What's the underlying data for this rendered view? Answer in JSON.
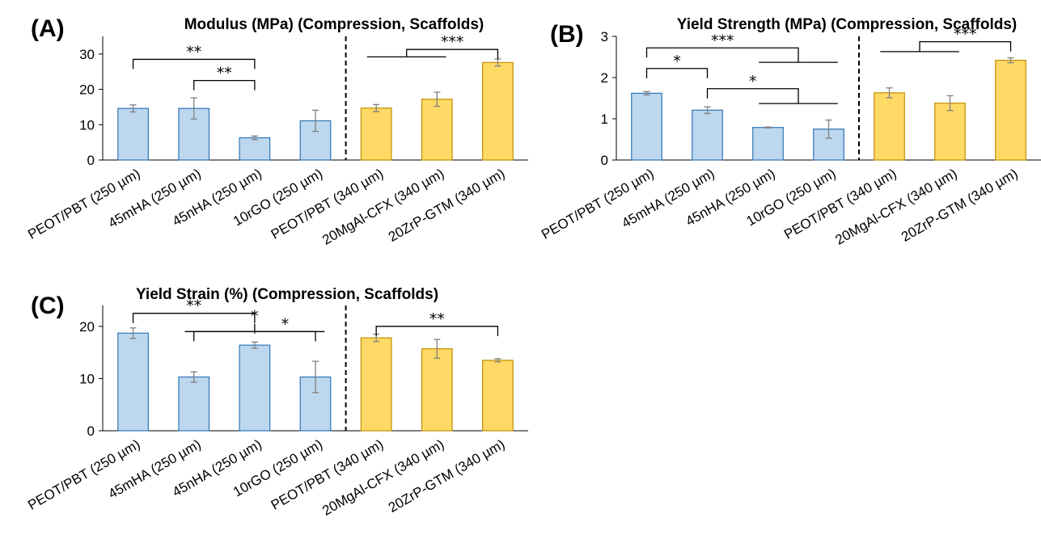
{
  "colors": {
    "blue_fill": "#bdd7ee",
    "blue_edge": "#2e75b6",
    "yellow_fill": "#ffd966",
    "yellow_edge": "#bf9000",
    "error_bar": "#7f7f7f",
    "axis": "#000000"
  },
  "chart_data": [
    {
      "panel": "(A)",
      "type": "bar",
      "title": "Modulus (MPa) (Compression, Scaffolds)",
      "categories": [
        "PEOT/PBT (250 µm)",
        "45mHA (250 µm)",
        "45nHA (250 µm)",
        "10rGO (250 µm)",
        "PEOT/PBT (340 µm)",
        "20MgAl-CFX (340 µm)",
        "20ZrP-GTM (340 µm)"
      ],
      "values": [
        14.6,
        14.6,
        6.3,
        11.1,
        14.7,
        17.2,
        27.6
      ],
      "errors": [
        1.0,
        3.0,
        0.5,
        3.0,
        1.0,
        2.0,
        1.0
      ],
      "fill": [
        "blue",
        "blue",
        "blue",
        "blue",
        "yellow",
        "yellow",
        "yellow"
      ],
      "ylim": [
        0,
        35
      ],
      "yticks": [
        0,
        10,
        20,
        30
      ],
      "grid": false,
      "divider_after_index": 3,
      "significance": [
        {
          "label": "**",
          "kind": "bracket",
          "from": 0,
          "to": 2,
          "y": 28.5
        },
        {
          "label": "**",
          "kind": "bracket",
          "from": 1,
          "to": 2,
          "y": 22.5
        },
        {
          "label": "***",
          "kind": "group",
          "group_from": 4,
          "group_to": 5,
          "group_y": 29.2,
          "target": 6,
          "y": 31.3
        }
      ]
    },
    {
      "panel": "(B)",
      "type": "bar",
      "title": "Yield Strength (MPa) (Compression, Scaffolds)",
      "categories": [
        "PEOT/PBT (250 µm)",
        "45mHA (250 µm)",
        "45nHA (250 µm)",
        "10rGO (250 µm)",
        "PEOT/PBT (340 µm)",
        "20MgAl-CFX (340 µm)",
        "20ZrP-GTM (340 µm)"
      ],
      "values": [
        1.62,
        1.21,
        0.79,
        0.75,
        1.63,
        1.38,
        2.42
      ],
      "errors": [
        0.04,
        0.08,
        0.01,
        0.22,
        0.12,
        0.18,
        0.06
      ],
      "fill": [
        "blue",
        "blue",
        "blue",
        "blue",
        "yellow",
        "yellow",
        "yellow"
      ],
      "ylim": [
        0,
        3
      ],
      "yticks": [
        0,
        1,
        2,
        3
      ],
      "grid": false,
      "divider_after_index": 3,
      "significance": [
        {
          "label": "*",
          "kind": "bracket",
          "from": 0,
          "to": 1,
          "y": 2.22
        },
        {
          "label": "***",
          "kind": "group",
          "group_from": 2,
          "group_to": 3,
          "group_y": 2.37,
          "target": 0,
          "y": 2.72
        },
        {
          "label": "*",
          "kind": "group",
          "group_from": 2,
          "group_to": 3,
          "group_y": 1.37,
          "target": 1,
          "y": 1.73
        },
        {
          "label": "***",
          "kind": "group",
          "group_from": 4,
          "group_to": 5,
          "group_y": 2.63,
          "target": 6,
          "y": 2.87
        }
      ]
    },
    {
      "panel": "(C)",
      "type": "bar",
      "title": "Yield Strain (%) (Compression, Scaffolds)",
      "categories": [
        "PEOT/PBT (250 µm)",
        "45mHA (250 µm)",
        "45nHA (250 µm)",
        "10rGO (250 µm)",
        "PEOT/PBT (340 µm)",
        "20MgAl-CFX (340 µm)",
        "20ZrP-GTM (340 µm)"
      ],
      "values": [
        18.7,
        10.3,
        16.4,
        10.3,
        17.8,
        15.7,
        13.5
      ],
      "errors": [
        1.0,
        1.0,
        0.6,
        3.0,
        0.7,
        1.8,
        0.3
      ],
      "fill": [
        "blue",
        "blue",
        "blue",
        "blue",
        "yellow",
        "yellow",
        "yellow"
      ],
      "ylim": [
        0,
        24
      ],
      "yticks": [
        0,
        10,
        20
      ],
      "grid": false,
      "divider_after_index": 3,
      "significance": [
        {
          "label": "**",
          "kind": "bracket",
          "from": 0,
          "to": 2,
          "y": 22.5
        },
        {
          "label": "*",
          "kind": "group",
          "group_from": 1,
          "group_to": 3,
          "group_y": 19.0,
          "target": 2,
          "y": 20.5
        },
        {
          "label": "*",
          "kind": "bracket",
          "from": 1,
          "to": 3,
          "y": 19.0,
          "label_at": 2.5
        },
        {
          "label": "**",
          "kind": "bracket",
          "from": 4,
          "to": 6,
          "y": 20.0
        }
      ]
    }
  ]
}
